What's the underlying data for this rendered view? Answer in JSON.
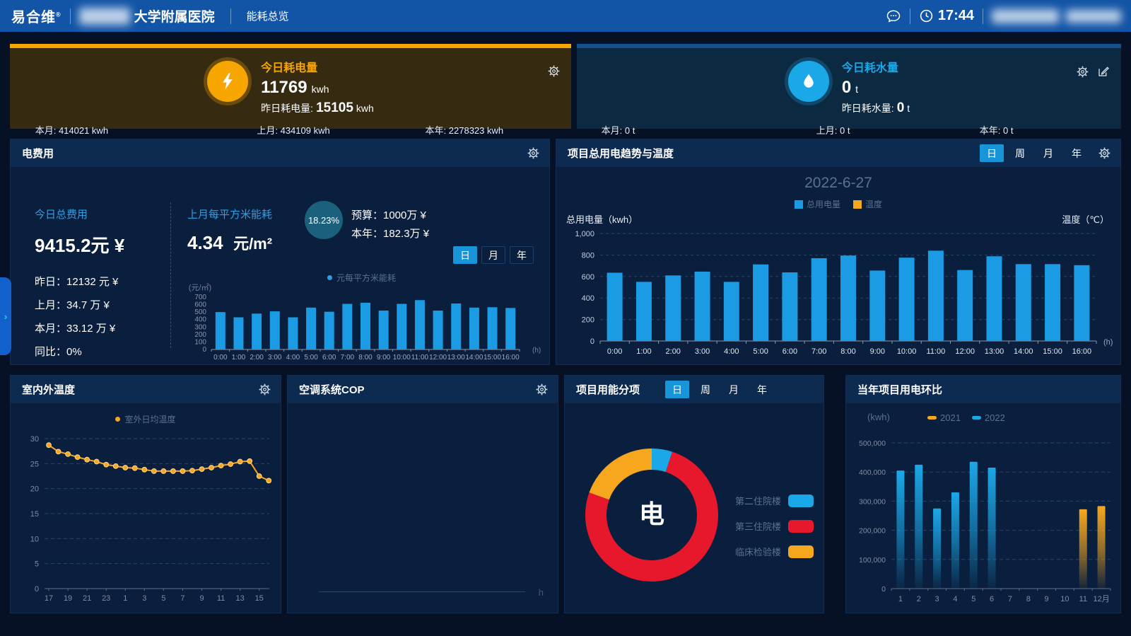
{
  "colors": {
    "nav_blue": "#1254a5",
    "bar_blue": "#1a9be4",
    "accent_blue": "#1ba8e8",
    "orange": "#f7a71e",
    "red": "#e8182c",
    "tab_active": "#1795d8",
    "text_blue": "#2f9ee3",
    "muted": "#5b7190",
    "card_electric_bg": "#362a10",
    "card_electric_strip": "#f7a600",
    "card_water_bg": "#0b2940",
    "card_water_strip": "#12508e"
  },
  "nav": {
    "logo": "易合维",
    "reg_mark": "®",
    "hospital_suffix": "大学附属医院",
    "menu_item": "能耗总览",
    "time": "17:44"
  },
  "cards": {
    "electric": {
      "title": "今日耗电量",
      "value": "11769",
      "unit": "kwh",
      "yesterday_label": "昨日耗电量:",
      "yesterday_value": "15105",
      "yesterday_unit": "kwh",
      "stats": [
        "本月: 414021  kwh",
        "上月: 434109  kwh",
        "本年: 2278323  kwh"
      ]
    },
    "water": {
      "title": "今日耗水量",
      "value": "0",
      "unit": "t",
      "yesterday_label": "昨日耗水量:",
      "yesterday_value": "0",
      "yesterday_unit": "t",
      "stats": [
        "本月: 0 t",
        "上月: 0 t",
        "本年: 0 t"
      ]
    }
  },
  "cost_panel": {
    "title": "电费用",
    "today_label": "今日总费用",
    "today_value": "9415.2元 ¥",
    "detail_rows": [
      "昨日：12132 元 ¥",
      "上月：34.7 万 ¥",
      "本月：33.12 万 ¥",
      "同比：0%"
    ],
    "sqm_label": "上月每平方米能耗",
    "sqm_value": "4.34",
    "sqm_unit": "元/m²",
    "ratio_value": "18.23%",
    "budget_line": "预算：1000万 ¥",
    "year_line": "本年：182.3万 ¥",
    "tabs": [
      "日",
      "月",
      "年"
    ],
    "active_tab": "日",
    "legend_label": "元每平方米能耗"
  },
  "trend_panel": {
    "title": "项目总用电趋势与温度",
    "tabs": [
      "日",
      "周",
      "月",
      "年"
    ],
    "active_tab": "日",
    "date_title": "2022-6-27",
    "legend": [
      {
        "label": "总用电量",
        "color": "#1a9be4"
      },
      {
        "label": "温度",
        "color": "#f7a71e"
      }
    ],
    "y_axis_caption": "总用电量（kwh）",
    "right_axis_caption": "温度（℃）"
  },
  "temp_panel": {
    "title": "室内外温度",
    "legend_label": "室外日均温度"
  },
  "cop_panel": {
    "title": "空调系统COP",
    "x_unit": "h"
  },
  "breakdown_panel": {
    "title": "项目用能分项",
    "tabs": [
      "日",
      "周",
      "月",
      "年"
    ],
    "active_tab": "日",
    "center_label": "电",
    "legend": [
      {
        "label": "第二住院楼",
        "color": "#1ba8e8"
      },
      {
        "label": "第三住院楼",
        "color": "#e8182c"
      },
      {
        "label": "临床检验楼",
        "color": "#f7a71e"
      }
    ]
  },
  "yoy_panel": {
    "title": "当年项目用电环比",
    "y_unit": "(kwh)",
    "legend": [
      {
        "label": "2021",
        "color": "#f7a71e"
      },
      {
        "label": "2022",
        "color": "#1ba8e8"
      }
    ]
  },
  "chart_data": [
    {
      "id": "cost_per_sqm_hourly",
      "type": "bar",
      "title": "元每平方米能耗(小时)",
      "ylabel": "(元/㎡)",
      "x_unit": "(h)",
      "ylim": [
        0,
        700
      ],
      "ystep": 100,
      "grid": false,
      "categories": [
        "0:00",
        "1:00",
        "2:00",
        "3:00",
        "4:00",
        "5:00",
        "6:00",
        "7:00",
        "8:00",
        "9:00",
        "10:00",
        "11:00",
        "12:00",
        "13:00",
        "14:00",
        "15:00",
        "16:00"
      ],
      "values": [
        500,
        430,
        480,
        510,
        430,
        560,
        505,
        610,
        625,
        520,
        610,
        660,
        520,
        615,
        560,
        565,
        555
      ]
    },
    {
      "id": "total_power_trend",
      "type": "bar",
      "title": "2022-6-27",
      "ylabel": "总用电量（kwh）",
      "ylabel_right": "温度（℃）",
      "x_unit": "(h)",
      "ylim": [
        0,
        1000
      ],
      "ystep": 200,
      "grid": true,
      "legend_position": "top",
      "categories": [
        "0:00",
        "1:00",
        "2:00",
        "3:00",
        "4:00",
        "5:00",
        "6:00",
        "7:00",
        "8:00",
        "9:00",
        "10:00",
        "11:00",
        "12:00",
        "13:00",
        "14:00",
        "15:00",
        "16:00"
      ],
      "series": [
        {
          "name": "总用电量",
          "values": [
            635,
            550,
            610,
            645,
            550,
            712,
            638,
            770,
            795,
            655,
            775,
            840,
            660,
            788,
            715,
            715,
            705
          ]
        },
        {
          "name": "温度",
          "values": []
        }
      ]
    },
    {
      "id": "outdoor_temperature",
      "type": "line",
      "title": "室外日均温度",
      "ylim": [
        0,
        30
      ],
      "ystep": 5,
      "grid": true,
      "x": [
        17,
        18,
        19,
        20,
        21,
        22,
        23,
        0,
        1,
        2,
        3,
        4,
        5,
        6,
        7,
        8,
        9,
        10,
        11,
        12,
        13,
        14,
        15,
        16
      ],
      "tick_labels": [
        "17",
        "19",
        "21",
        "23",
        "1",
        "3",
        "5",
        "7",
        "9",
        "11",
        "13",
        "15"
      ],
      "values": [
        28.7,
        27.4,
        26.9,
        26.3,
        25.8,
        25.4,
        24.8,
        24.5,
        24.2,
        24.1,
        23.8,
        23.5,
        23.5,
        23.5,
        23.5,
        23.6,
        23.9,
        24.2,
        24.6,
        24.9,
        25.4,
        25.5,
        22.5,
        21.6
      ]
    },
    {
      "id": "energy_breakdown",
      "type": "pie",
      "title": "项目用能分项(电)",
      "center_label": "电",
      "slices": [
        {
          "label": "第二住院楼",
          "percent": 5,
          "color": "#1ba8e8"
        },
        {
          "label": "第三住院楼",
          "percent": 75.5,
          "color": "#e8182c"
        },
        {
          "label": "临床检验楼",
          "percent": 19.5,
          "color": "#f7a71e"
        }
      ]
    },
    {
      "id": "yoy_monthly_power",
      "type": "bar",
      "title": "当年项目用电环比",
      "ylabel": "(kwh)",
      "ylim": [
        0,
        500000
      ],
      "ystep": 100000,
      "grid": true,
      "categories": [
        "1",
        "2",
        "3",
        "4",
        "5",
        "6",
        "7",
        "8",
        "9",
        "10",
        "11",
        "12月"
      ],
      "series": [
        {
          "name": "2021",
          "color": "#f7a71e",
          "values": [
            null,
            null,
            null,
            null,
            null,
            null,
            null,
            null,
            null,
            null,
            272000,
            283000
          ]
        },
        {
          "name": "2022",
          "color": "#1ba8e8",
          "values": [
            405000,
            425000,
            275000,
            330000,
            435000,
            415000,
            null,
            null,
            null,
            null,
            null,
            null
          ]
        }
      ]
    }
  ]
}
